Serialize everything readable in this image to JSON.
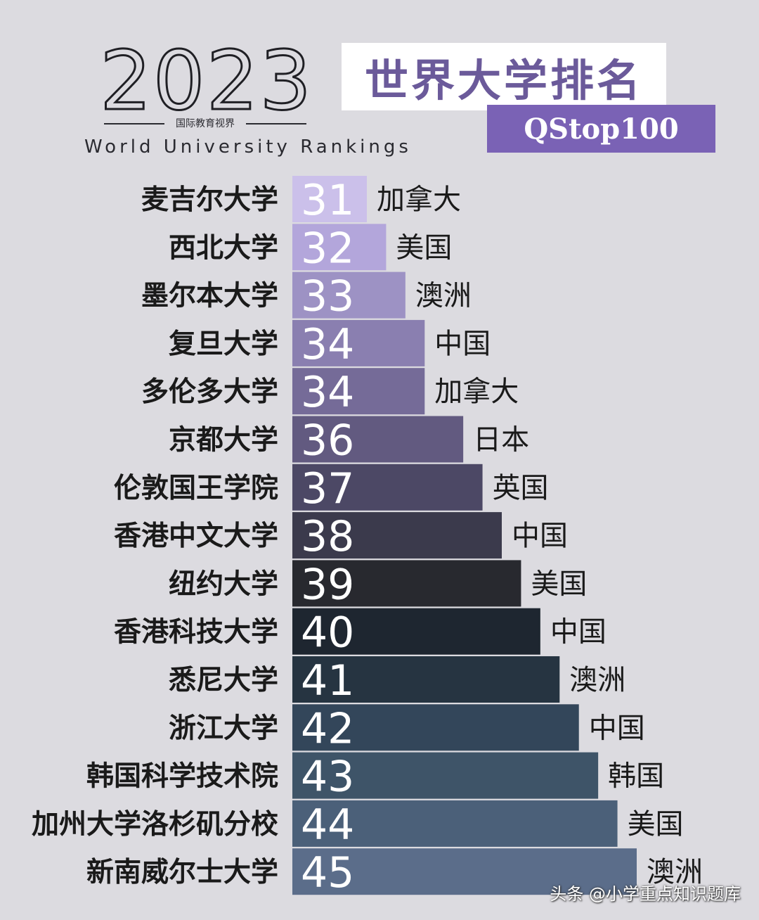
{
  "header": {
    "year": "2023",
    "subtitle_cn": "国际教育视界",
    "subtitle_en": "World University Rankings",
    "title": "世界大学排名",
    "tag": "QStop100"
  },
  "chart_data": {
    "type": "bar",
    "orientation": "horizontal",
    "categories": [
      "麦吉尔大学",
      "西北大学",
      "墨尔本大学",
      "复旦大学",
      "多伦多大学",
      "京都大学",
      "伦敦国王学院",
      "香港中文大学",
      "纽约大学",
      "香港科技大学",
      "悉尼大学",
      "浙江大学",
      "韩国科学技术院",
      "加州大学洛杉矶分校",
      "新南威尔士大学"
    ],
    "values": [
      31,
      32,
      33,
      34,
      34,
      36,
      37,
      38,
      39,
      40,
      41,
      42,
      43,
      44,
      45
    ],
    "countries": [
      "加拿大",
      "美国",
      "澳洲",
      "中国",
      "加拿大",
      "日本",
      "英国",
      "中国",
      "美国",
      "中国",
      "澳洲",
      "中国",
      "韩国",
      "美国",
      "澳洲"
    ],
    "bar_colors": [
      "#cbc0ea",
      "#b3a6db",
      "#9d92c4",
      "#8a7fb0",
      "#756b98",
      "#625a80",
      "#4c4865",
      "#3b3a4c",
      "#28292f",
      "#1e2630",
      "#263441",
      "#33465a",
      "#3e5468",
      "#4b6079",
      "#5b6d8a"
    ],
    "label_color": "#ffffff",
    "category_color": "#1a1a1a"
  },
  "watermark": "头条 @小学重点知识题库"
}
